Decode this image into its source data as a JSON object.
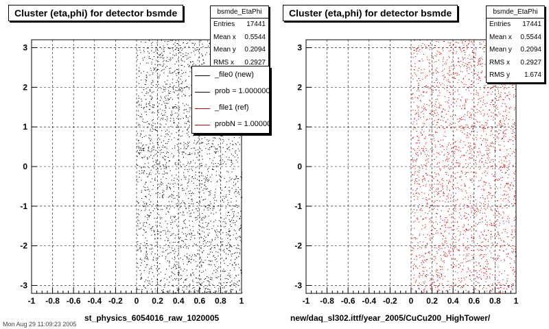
{
  "chart_data": [
    {
      "type": "scatter",
      "title": "Cluster (eta,phi) for detector bsmde",
      "xlabel": "st_physics_6054016_raw_1020005",
      "ylabel": "",
      "xlim": [
        -1,
        1
      ],
      "ylim": [
        -3.2,
        3.2
      ],
      "x_ticks": [
        "-1",
        "-0.8",
        "-0.6",
        "-0.4",
        "-0.2",
        "0",
        "0.2",
        "0.4",
        "0.6",
        "0.8",
        "1"
      ],
      "y_ticks": [
        "3",
        "2",
        "1",
        "0",
        "-1",
        "-2",
        "-3"
      ],
      "grid": true,
      "marker_color": "#000000",
      "data_x_range": [
        0,
        1
      ],
      "data_y_range": [
        -3.2,
        3.2
      ],
      "stats": {
        "name": "bsmde_EtaPhi",
        "rows": [
          {
            "label": "Entries",
            "value": "17441"
          },
          {
            "label": "Mean x",
            "value": "0.5544"
          },
          {
            "label": "Mean y",
            "value": "0.2094"
          },
          {
            "label": "RMS x",
            "value": "0.2927"
          }
        ]
      },
      "legend": {
        "placement": "top-right",
        "entries": [
          {
            "label": "_file0 (new)",
            "color": "#000000"
          },
          {
            "label": "prob = 1.000000",
            "color": "#000000"
          },
          {
            "label": "_file1 (ref)",
            "color": "#cc0000"
          },
          {
            "label": "probN = 1.000000",
            "color": "#cc0000"
          }
        ]
      }
    },
    {
      "type": "scatter",
      "title": "Cluster (eta,phi) for detector bsmde",
      "xlabel": "new/daq_sl302.ittf/year_2005/CuCu200_HighTower/",
      "ylabel": "",
      "xlim": [
        -1,
        1
      ],
      "ylim": [
        -3.2,
        3.2
      ],
      "x_ticks": [
        "-1",
        "-0.8",
        "-0.6",
        "-0.4",
        "-0.2",
        "0",
        "0.2",
        "0.4",
        "0.6",
        "0.8",
        "1"
      ],
      "y_ticks": [
        "3",
        "2",
        "1",
        "0",
        "-1",
        "-2",
        "-3"
      ],
      "grid": true,
      "marker_color": "#cc0000",
      "data_x_range": [
        0,
        1
      ],
      "data_y_range": [
        -3.2,
        3.2
      ],
      "stats": {
        "name": "bsmde_EtaPhi",
        "rows": [
          {
            "label": "Entries",
            "value": "17441"
          },
          {
            "label": "Mean x",
            "value": "0.5544"
          },
          {
            "label": "Mean y",
            "value": "0.2094"
          },
          {
            "label": "RMS x",
            "value": "0.2927"
          },
          {
            "label": "RMS y",
            "value": "1.674"
          }
        ]
      }
    }
  ],
  "footer": {
    "text": "Mon Aug 29 11:09:23 2005"
  }
}
